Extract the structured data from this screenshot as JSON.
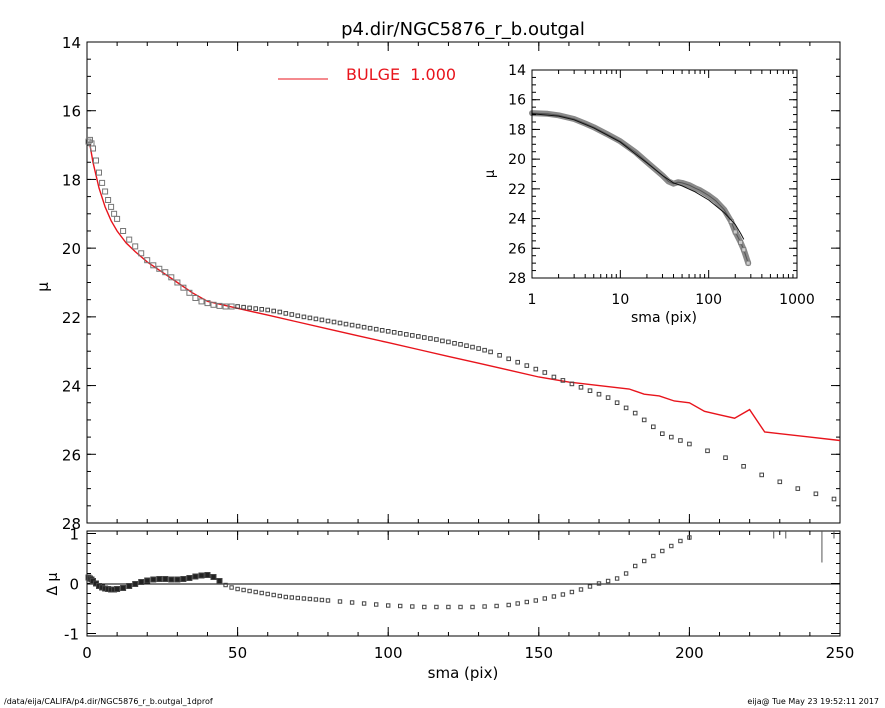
{
  "title": "p4.dir/NGC5876_r_b.outgal",
  "footer_left": "/data/eija/CALIFA/p4.dir/NGC5876_r_b.outgal_1dprof",
  "footer_right": "eija@  Tue May 23 19:52:11 2017",
  "colors": {
    "model": "#e8141c",
    "data": "#555555",
    "axes": "#000000",
    "inset_band": "#8a8a8a"
  },
  "chart_data": [
    {
      "id": "main",
      "type": "scatter",
      "title": "p4.dir/NGC5876_r_b.outgal",
      "xlabel": "",
      "ylabel": "μ",
      "xlim": [
        0,
        250
      ],
      "ylim": [
        28,
        14
      ],
      "y_inverted": true,
      "grid": false,
      "legend": {
        "placement": "top-center",
        "entries": [
          {
            "label": "BULGE  1.000",
            "color": "#e8141c"
          }
        ]
      },
      "xticks": [
        0,
        50,
        100,
        150,
        200,
        250
      ],
      "yticks": [
        14,
        16,
        18,
        20,
        22,
        24,
        26,
        28
      ],
      "model_line": {
        "name": "BULGE  1.000",
        "x": [
          1,
          2,
          4,
          6,
          8,
          10,
          13,
          16,
          20,
          25,
          30,
          35,
          40,
          45,
          50,
          60,
          70,
          80,
          90,
          100,
          110,
          120,
          130,
          140,
          150,
          160,
          170,
          180,
          185,
          190,
          195,
          200,
          205,
          210,
          215,
          220,
          225,
          230,
          240,
          250
        ],
        "y": [
          17.0,
          17.5,
          18.25,
          18.8,
          19.2,
          19.5,
          19.85,
          20.1,
          20.4,
          20.7,
          21.0,
          21.3,
          21.55,
          21.65,
          21.75,
          21.95,
          22.15,
          22.35,
          22.55,
          22.75,
          22.95,
          23.15,
          23.35,
          23.55,
          23.75,
          23.9,
          24.0,
          24.1,
          24.25,
          24.3,
          24.45,
          24.5,
          24.75,
          24.85,
          24.95,
          24.7,
          25.35,
          25.4,
          25.5,
          25.6
        ]
      },
      "data_points": {
        "x": [
          0.5,
          1,
          1.5,
          2,
          3,
          4,
          5,
          6,
          7,
          8,
          9,
          10,
          12,
          14,
          16,
          18,
          20,
          22,
          24,
          26,
          28,
          30,
          32,
          34,
          36,
          38,
          40,
          42,
          44,
          46,
          48,
          50,
          52,
          54,
          56,
          58,
          60,
          62,
          64,
          66,
          68,
          70,
          72,
          74,
          76,
          78,
          80,
          82,
          84,
          86,
          88,
          90,
          92,
          94,
          96,
          98,
          100,
          102,
          104,
          106,
          108,
          110,
          112,
          114,
          116,
          118,
          120,
          122,
          124,
          126,
          128,
          130,
          132,
          134,
          137,
          140,
          143,
          146,
          149,
          152,
          155,
          158,
          161,
          164,
          167,
          170,
          173,
          176,
          179,
          182,
          185,
          188,
          191,
          194,
          197,
          200,
          206,
          212,
          218,
          224,
          230,
          236,
          242,
          248
        ],
        "y": [
          16.9,
          16.85,
          16.95,
          17.1,
          17.45,
          17.8,
          18.1,
          18.35,
          18.6,
          18.8,
          19.0,
          19.15,
          19.5,
          19.75,
          19.95,
          20.15,
          20.35,
          20.5,
          20.6,
          20.7,
          20.85,
          21.0,
          21.15,
          21.3,
          21.45,
          21.55,
          21.6,
          21.65,
          21.68,
          21.7,
          21.7,
          21.7,
          21.72,
          21.74,
          21.76,
          21.78,
          21.8,
          21.83,
          21.86,
          21.9,
          21.93,
          21.97,
          22.0,
          22.03,
          22.06,
          22.09,
          22.12,
          22.15,
          22.18,
          22.21,
          22.24,
          22.27,
          22.3,
          22.33,
          22.36,
          22.39,
          22.42,
          22.45,
          22.48,
          22.51,
          22.54,
          22.57,
          22.6,
          22.63,
          22.66,
          22.7,
          22.73,
          22.77,
          22.8,
          22.84,
          22.88,
          22.92,
          22.97,
          23.02,
          23.12,
          23.22,
          23.32,
          23.42,
          23.52,
          23.62,
          23.75,
          23.85,
          23.95,
          24.05,
          24.15,
          24.25,
          24.35,
          24.5,
          24.65,
          24.8,
          25.0,
          25.2,
          25.4,
          25.5,
          25.6,
          25.7,
          25.9,
          26.1,
          26.35,
          26.6,
          26.8,
          27.0,
          27.15,
          27.3
        ]
      }
    },
    {
      "id": "residual",
      "type": "scatter",
      "xlabel": "sma (pix)",
      "ylabel": "Δ μ",
      "xlim": [
        0,
        250
      ],
      "ylim": [
        -1.05,
        1.05
      ],
      "grid": false,
      "xticks": [
        0,
        50,
        100,
        150,
        200,
        250
      ],
      "yticks": [
        -1,
        0,
        1
      ],
      "zero_line": 0,
      "points": {
        "x": [
          0.5,
          1,
          1.5,
          2,
          3,
          4,
          5,
          6,
          7,
          8,
          9,
          10,
          12,
          14,
          16,
          18,
          20,
          22,
          24,
          26,
          28,
          30,
          32,
          34,
          36,
          38,
          40,
          42,
          44,
          46,
          48,
          50,
          52,
          54,
          56,
          58,
          60,
          62,
          64,
          66,
          68,
          70,
          72,
          74,
          76,
          78,
          80,
          84,
          88,
          92,
          96,
          100,
          104,
          108,
          112,
          116,
          120,
          124,
          128,
          132,
          136,
          140,
          143,
          146,
          149,
          152,
          155,
          158,
          161,
          164,
          167,
          170,
          173,
          176,
          179,
          182,
          185,
          188,
          191,
          194,
          197,
          200
        ],
        "y": [
          0.12,
          0.1,
          0.08,
          0.05,
          0.0,
          -0.05,
          -0.08,
          -0.1,
          -0.11,
          -0.12,
          -0.12,
          -0.11,
          -0.09,
          -0.05,
          -0.01,
          0.03,
          0.06,
          0.08,
          0.09,
          0.09,
          0.08,
          0.08,
          0.09,
          0.11,
          0.14,
          0.16,
          0.17,
          0.13,
          0.05,
          -0.03,
          -0.08,
          -0.11,
          -0.13,
          -0.15,
          -0.17,
          -0.19,
          -0.21,
          -0.23,
          -0.25,
          -0.27,
          -0.28,
          -0.29,
          -0.3,
          -0.31,
          -0.32,
          -0.33,
          -0.34,
          -0.36,
          -0.38,
          -0.4,
          -0.42,
          -0.44,
          -0.45,
          -0.46,
          -0.47,
          -0.47,
          -0.47,
          -0.47,
          -0.47,
          -0.46,
          -0.45,
          -0.43,
          -0.4,
          -0.37,
          -0.34,
          -0.3,
          -0.26,
          -0.22,
          -0.17,
          -0.12,
          -0.06,
          0.0,
          0.05,
          0.1,
          0.2,
          0.35,
          0.45,
          0.55,
          0.65,
          0.75,
          0.85,
          0.92
        ]
      },
      "spikes": {
        "x": [
          228,
          232,
          244,
          248
        ],
        "y": [
          0.9,
          0.9,
          0.42,
          0.9
        ]
      }
    },
    {
      "id": "inset",
      "type": "line",
      "xlabel": "sma (pix)",
      "ylabel": "μ",
      "x_scale": "log",
      "xlim": [
        1,
        1000
      ],
      "ylim": [
        28,
        14
      ],
      "y_inverted": true,
      "grid": false,
      "xticks": [
        1,
        10,
        100,
        1000
      ],
      "xtick_labels": [
        "1",
        "10",
        "100",
        "1000"
      ],
      "yticks": [
        14,
        16,
        18,
        20,
        22,
        24,
        26,
        28
      ],
      "band": {
        "x": [
          1,
          1.5,
          2,
          3,
          4,
          5,
          7,
          10,
          15,
          20,
          25,
          30,
          35,
          40,
          45,
          50,
          60,
          70,
          80,
          100,
          120,
          150,
          180,
          200,
          230,
          250,
          280
        ],
        "y": [
          16.9,
          16.95,
          17.05,
          17.3,
          17.6,
          17.85,
          18.3,
          18.8,
          19.55,
          20.2,
          20.7,
          21.1,
          21.5,
          21.65,
          21.55,
          21.6,
          21.75,
          21.95,
          22.1,
          22.45,
          22.8,
          23.4,
          24.2,
          24.9,
          25.6,
          26.1,
          27.0
        ]
      },
      "model_line": {
        "x": [
          1,
          2,
          3,
          5,
          10,
          20,
          30,
          40,
          50,
          70,
          100,
          150,
          200,
          230,
          250
        ],
        "y": [
          16.95,
          17.1,
          17.35,
          17.9,
          18.85,
          20.25,
          21.1,
          21.6,
          21.8,
          22.2,
          22.75,
          23.6,
          24.4,
          25.0,
          25.4
        ]
      }
    }
  ]
}
